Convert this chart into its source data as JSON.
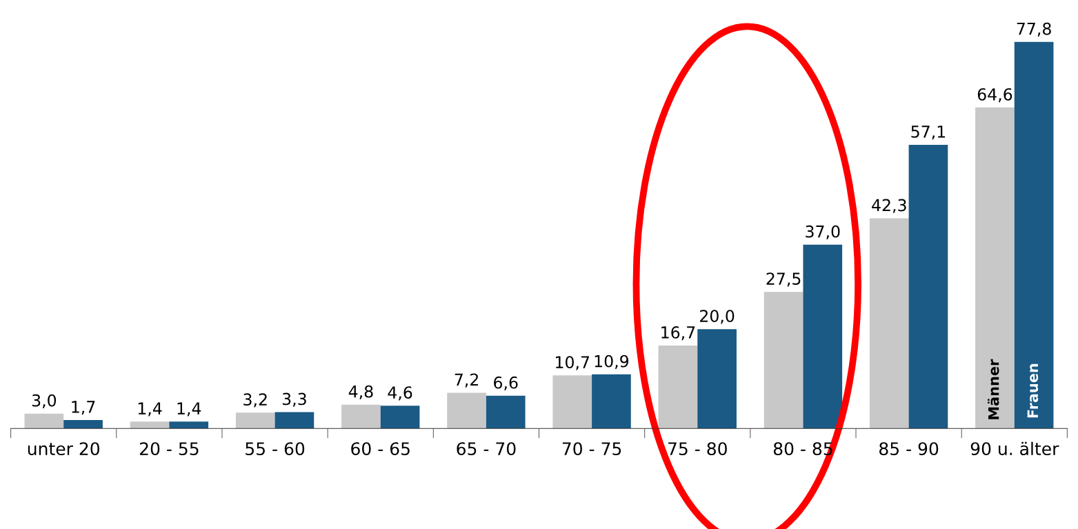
{
  "chart_data": {
    "type": "bar",
    "categories": [
      "unter 20",
      "20 - 55",
      "55 - 60",
      "60 - 65",
      "65 - 70",
      "70 - 75",
      "75 - 80",
      "80 - 85",
      "85 - 90",
      "90 u. älter"
    ],
    "series": [
      {
        "name": "Männer",
        "color": "#c8c8c8",
        "values": [
          3.0,
          1.4,
          3.2,
          4.8,
          7.2,
          10.7,
          16.7,
          27.5,
          42.3,
          64.6
        ],
        "value_labels": [
          "3,0",
          "1,4",
          "3,2",
          "4,8",
          "7,2",
          "10,7",
          "16,7",
          "27,5",
          "42,3",
          "64,6"
        ]
      },
      {
        "name": "Frauen",
        "color": "#1a5a84",
        "values": [
          1.7,
          1.4,
          3.3,
          4.6,
          6.6,
          10.9,
          20.0,
          37.0,
          57.1,
          77.8
        ],
        "value_labels": [
          "1,7",
          "1,4",
          "3,3",
          "4,6",
          "6,6",
          "10,9",
          "20,0",
          "37,0",
          "57,1",
          "77,8"
        ]
      }
    ],
    "tick_labels": "x",
    "grid": false,
    "legend": false
  }
}
